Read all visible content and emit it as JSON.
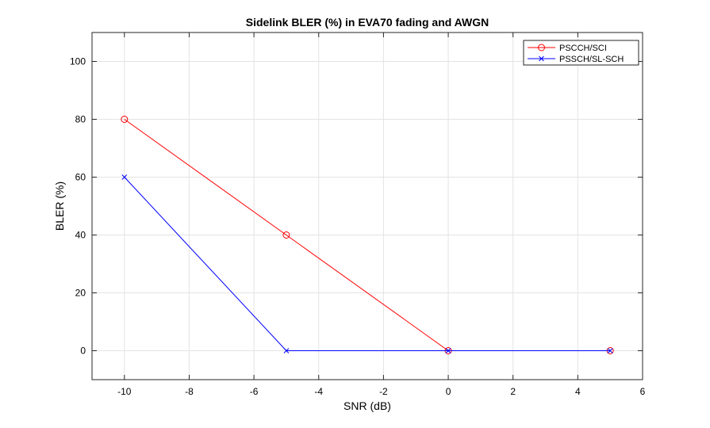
{
  "chart_data": {
    "type": "line",
    "title": "Sidelink BLER (%) in EVA70 fading and AWGN",
    "xlabel": "SNR (dB)",
    "ylabel": "BLER (%)",
    "xlim": [
      -11,
      6
    ],
    "ylim": [
      -10,
      110
    ],
    "xticks": [
      -10,
      -8,
      -6,
      -4,
      -2,
      0,
      2,
      4,
      6
    ],
    "yticks": [
      0,
      20,
      40,
      60,
      80,
      100
    ],
    "grid": true,
    "legend_position": "top-right",
    "series": [
      {
        "name": "PSCCH/SCI",
        "color": "#ff0000",
        "marker": "circle",
        "x": [
          -10,
          -5,
          0,
          5
        ],
        "y": [
          80,
          40,
          0,
          0
        ]
      },
      {
        "name": "PSSCH/SL-SCH",
        "color": "#0000ff",
        "marker": "x",
        "x": [
          -10,
          -5,
          0,
          5
        ],
        "y": [
          60,
          0,
          0,
          0
        ]
      }
    ]
  }
}
